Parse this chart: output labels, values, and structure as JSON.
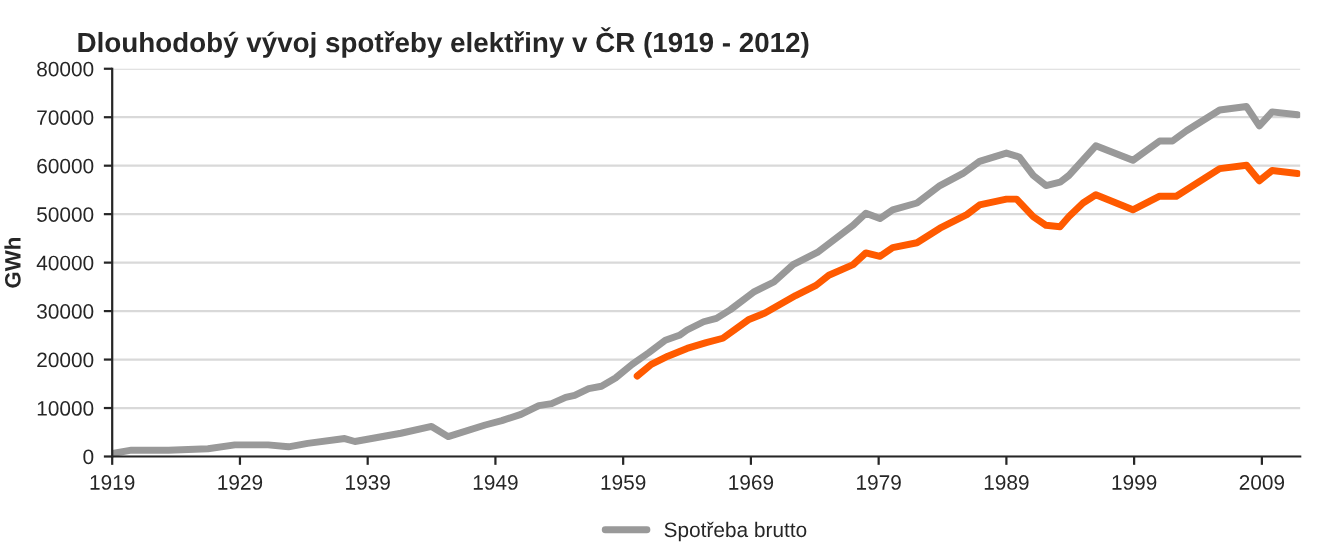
{
  "chart_data": {
    "type": "line",
    "title": "Dlouhodobý vývoj spotřeby elektřiny v ČR (1919 - 2012)",
    "ylabel": "GWh",
    "xlim": [
      1919,
      2012
    ],
    "xticks": [
      1919,
      1929,
      1939,
      1949,
      1959,
      1969,
      1979,
      1989,
      1999,
      2009
    ],
    "ylim": [
      0,
      80000
    ],
    "yticks": [
      0,
      10000,
      20000,
      30000,
      40000,
      50000,
      60000,
      70000,
      80000
    ],
    "grid": "y",
    "legend": "bottom",
    "line_style": "solid",
    "marker": "none",
    "series": [
      {
        "name": "Spotřeba brutto",
        "color": "#999999",
        "x": [
          1919,
          1920.5,
          1923.4,
          1926.5,
          1928.6,
          1931.2,
          1932.8,
          1934.3,
          1937.2,
          1938,
          1941.6,
          1944,
          1945.3,
          1948.2,
          1949.5,
          1951,
          1952.4,
          1953.4,
          1954.5,
          1955.2,
          1956.3,
          1957.3,
          1958.4,
          1959.7,
          1961,
          1962.3,
          1963.4,
          1964,
          1965.3,
          1966.3,
          1967.4,
          1969.2,
          1970.8,
          1972.3,
          1974.2,
          1976,
          1977,
          1978,
          1979.1,
          1980.1,
          1982,
          1983.8,
          1985.6,
          1986.9,
          1989,
          1990,
          1991.1,
          1992.1,
          1993.2,
          1993.9,
          1996,
          1998.9,
          2001,
          2002,
          2003.1,
          2005.7,
          2007.8,
          2008.8,
          2009.8,
          2011.8
        ],
        "values": [
          600,
          1300,
          1300,
          1600,
          2400,
          2400,
          2000,
          2700,
          3700,
          3100,
          4800,
          6200,
          4100,
          6500,
          7400,
          8700,
          10500,
          10900,
          12200,
          12600,
          14000,
          14500,
          16200,
          19000,
          21400,
          24000,
          25000,
          26100,
          27800,
          28500,
          30300,
          33900,
          36000,
          39600,
          42100,
          45700,
          47700,
          50200,
          49100,
          50900,
          52300,
          55900,
          58400,
          60900,
          62600,
          61800,
          58000,
          55900,
          56600,
          58000,
          64100,
          61100,
          65100,
          65100,
          67200,
          71500,
          72200,
          68200,
          71100,
          70500
        ]
      },
      {
        "color": "#ff5a00",
        "x": [
          1960.1,
          1961.2,
          1962.5,
          1964,
          1965.5,
          1966.8,
          1968.8,
          1970.1,
          1972.5,
          1974.1,
          1975.1,
          1977,
          1978,
          1979.1,
          1980.1,
          1982,
          1983.8,
          1985.9,
          1986.9,
          1989,
          1989.8,
          1991.1,
          1992.1,
          1993.2,
          1993.9,
          1995,
          1996,
          1998.9,
          2001,
          2002.3,
          2005.7,
          2007.8,
          2008.8,
          2009.8,
          2011.8
        ],
        "values": [
          16600,
          19000,
          20700,
          22300,
          23500,
          24400,
          28200,
          29600,
          33200,
          35300,
          37400,
          39600,
          42000,
          41300,
          43100,
          44100,
          47100,
          49900,
          51900,
          53100,
          53100,
          49500,
          47700,
          47400,
          49500,
          52300,
          54000,
          50900,
          53700,
          53700,
          59400,
          60100,
          56900,
          59000,
          58400
        ]
      }
    ]
  }
}
